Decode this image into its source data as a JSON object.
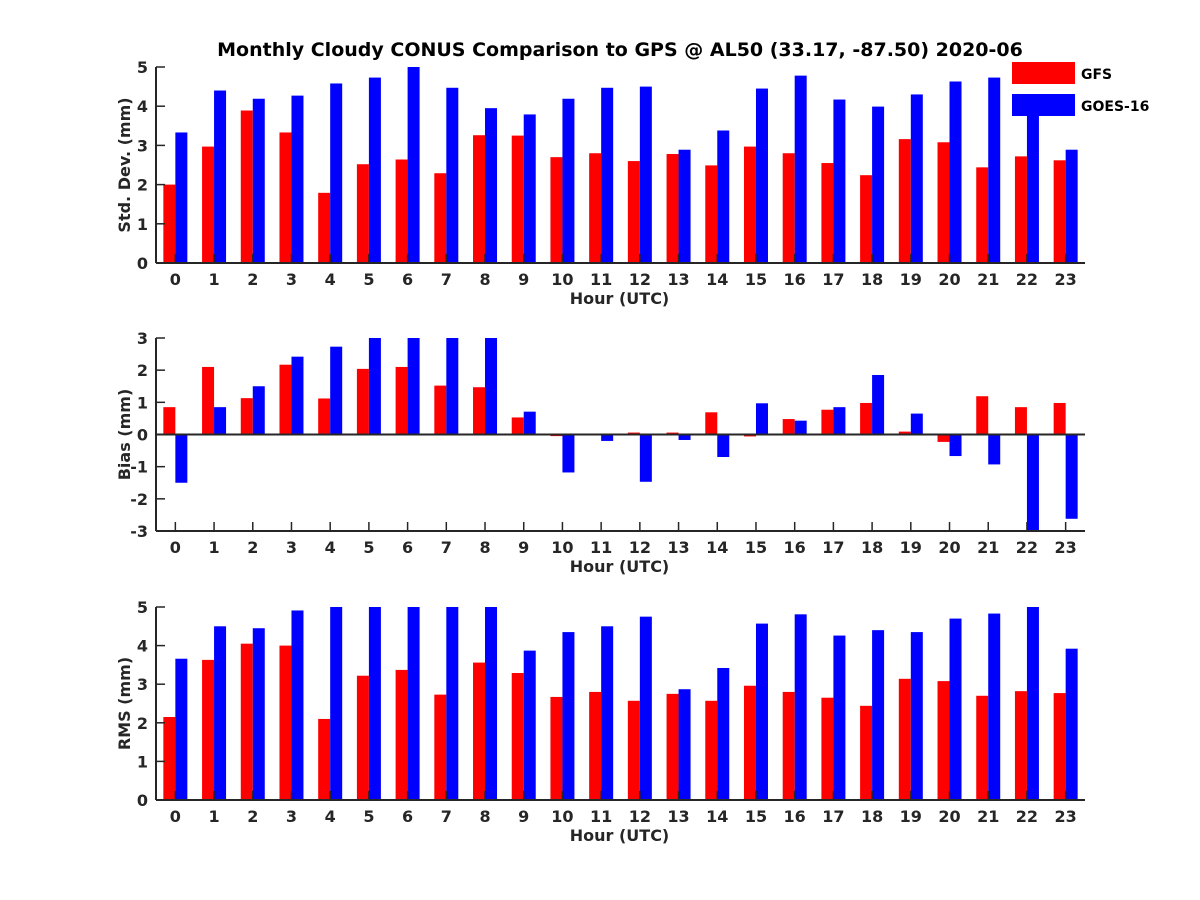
{
  "chart_data": {
    "title": "Monthly Cloudy CONUS Comparison to GPS @ AL50 (33.17, -87.50) 2020-06",
    "legend": {
      "position": "top-right",
      "entries": [
        {
          "name": "GFS",
          "color": "#ff0000"
        },
        {
          "name": "GOES-16",
          "color": "#0000ff"
        }
      ]
    },
    "categories": [
      "0",
      "1",
      "2",
      "3",
      "4",
      "5",
      "6",
      "7",
      "8",
      "9",
      "10",
      "11",
      "12",
      "13",
      "14",
      "15",
      "16",
      "17",
      "18",
      "19",
      "20",
      "21",
      "22",
      "23"
    ],
    "panels": [
      {
        "type": "bar",
        "xlabel": "Hour (UTC)",
        "ylabel": "Std. Dev. (mm)",
        "ylim": [
          0,
          5
        ],
        "yticks": [
          0,
          1,
          2,
          3,
          4,
          5
        ],
        "series": [
          {
            "name": "GFS",
            "color": "#ff0000",
            "values": [
              2.0,
              2.97,
              3.89,
              3.33,
              1.79,
              2.52,
              2.64,
              2.29,
              3.26,
              3.25,
              2.7,
              2.8,
              2.6,
              2.78,
              2.49,
              2.97,
              2.8,
              2.55,
              2.24,
              3.16,
              3.08,
              2.44,
              2.72,
              2.62
            ]
          },
          {
            "name": "GOES-16",
            "color": "#0000ff",
            "values": [
              3.33,
              4.4,
              4.19,
              4.27,
              4.58,
              4.73,
              5.0,
              4.47,
              3.95,
              3.79,
              4.19,
              4.47,
              4.5,
              2.89,
              3.38,
              4.45,
              4.78,
              4.17,
              3.99,
              4.3,
              4.63,
              4.73,
              3.86,
              2.89
            ]
          }
        ]
      },
      {
        "type": "bar",
        "xlabel": "Hour (UTC)",
        "ylabel": "Bias (mm)",
        "ylim": [
          -3,
          3
        ],
        "yticks": [
          -3,
          -2,
          -1,
          0,
          1,
          2,
          3
        ],
        "zero_line": true,
        "series": [
          {
            "name": "GFS",
            "color": "#ff0000",
            "values": [
              0.85,
              2.1,
              1.13,
              2.17,
              1.12,
              2.04,
              2.1,
              1.52,
              1.47,
              0.53,
              -0.05,
              0.03,
              0.06,
              0.06,
              0.69,
              -0.06,
              0.48,
              0.77,
              0.98,
              0.09,
              -0.23,
              1.19,
              0.85,
              0.98
            ]
          },
          {
            "name": "GOES-16",
            "color": "#0000ff",
            "values": [
              -1.5,
              0.85,
              1.5,
              2.42,
              2.73,
              3.0,
              3.0,
              3.0,
              3.0,
              0.71,
              -1.18,
              -0.2,
              -1.47,
              -0.17,
              -0.7,
              0.97,
              0.43,
              0.85,
              1.85,
              0.65,
              -0.67,
              -0.93,
              -3.0,
              -2.62
            ]
          }
        ]
      },
      {
        "type": "bar",
        "xlabel": "Hour (UTC)",
        "ylabel": "RMS (mm)",
        "ylim": [
          0,
          5
        ],
        "yticks": [
          0,
          1,
          2,
          3,
          4,
          5
        ],
        "series": [
          {
            "name": "GFS",
            "color": "#ff0000",
            "values": [
              2.15,
              3.63,
              4.05,
              4.0,
              2.1,
              3.22,
              3.37,
              2.73,
              3.56,
              3.29,
              2.67,
              2.8,
              2.57,
              2.75,
              2.57,
              2.96,
              2.8,
              2.65,
              2.44,
              3.14,
              3.08,
              2.7,
              2.82,
              2.77
            ]
          },
          {
            "name": "GOES-16",
            "color": "#0000ff",
            "values": [
              3.66,
              4.5,
              4.45,
              4.91,
              5.0,
              5.0,
              5.0,
              5.0,
              5.0,
              3.87,
              4.35,
              4.5,
              4.75,
              2.87,
              3.42,
              4.57,
              4.81,
              4.26,
              4.4,
              4.35,
              4.7,
              4.83,
              5.0,
              3.92
            ]
          }
        ]
      }
    ]
  }
}
